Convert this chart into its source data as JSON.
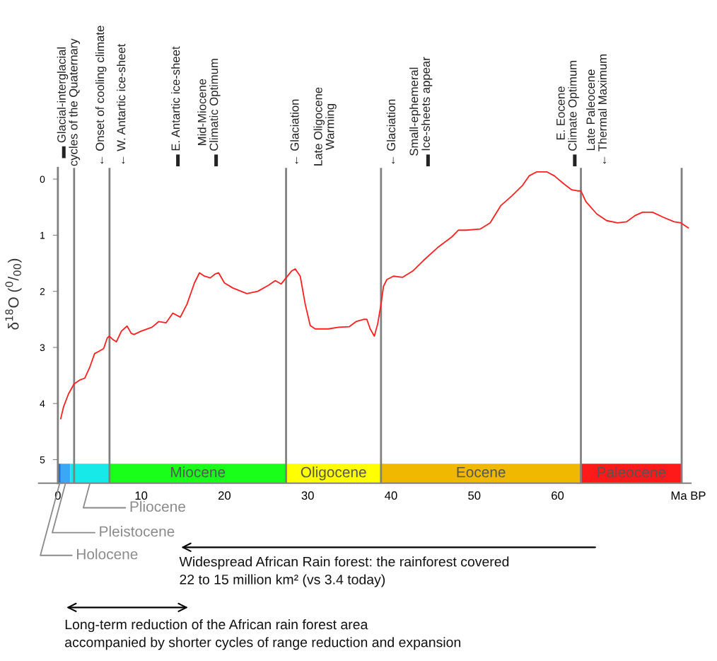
{
  "chart_data": {
    "type": "line",
    "ylabel": "δ$^{18}$O ($^{0}$/$_{00}$)",
    "x": [
      0.34,
      0.68,
      1.27,
      1.95,
      2.63,
      3.22,
      3.81,
      4.41,
      4.92,
      5.5,
      5.93,
      6.19,
      6.61,
      7.03,
      7.63,
      8.31,
      8.81,
      9.15,
      10.0,
      11.3,
      12.1,
      13.0,
      13.8,
      14.7,
      15.5,
      16.4,
      17.0,
      17.6,
      18.3,
      18.9,
      19.3,
      20.0,
      21.0,
      22.7,
      24.0,
      25.3,
      26.1,
      26.8,
      27.4,
      28.05,
      28.5,
      29.1,
      29.7,
      30.3,
      30.9,
      32.5,
      33.7,
      35.0,
      35.8,
      36.7,
      37.1,
      37.5,
      38.0,
      38.4,
      38.8,
      39.1,
      39.5,
      40.3,
      41.4,
      42.6,
      43.9,
      45.6,
      47.3,
      48.1,
      49.0,
      50.7,
      51.9,
      53.2,
      54.5,
      55.8,
      56.6,
      57.5,
      58.7,
      59.6,
      60.8,
      61.7,
      62.4,
      62.8,
      63.4,
      64.7,
      65.9,
      67.2,
      68.3,
      69.3,
      70.2,
      71.4,
      72.7,
      74.0,
      74.8,
      75.7
    ],
    "series": [
      {
        "color": "#ff2020",
        "values": [
          4.27,
          4.06,
          3.83,
          3.65,
          3.58,
          3.55,
          3.36,
          3.11,
          3.07,
          3.02,
          2.83,
          2.8,
          2.86,
          2.9,
          2.71,
          2.62,
          2.75,
          2.77,
          2.71,
          2.64,
          2.54,
          2.56,
          2.39,
          2.46,
          2.23,
          1.85,
          1.67,
          1.73,
          1.76,
          1.69,
          1.67,
          1.85,
          1.94,
          2.04,
          2.0,
          1.89,
          1.81,
          1.87,
          1.76,
          1.64,
          1.6,
          1.73,
          2.23,
          2.61,
          2.67,
          2.67,
          2.64,
          2.63,
          2.54,
          2.5,
          2.5,
          2.67,
          2.8,
          2.58,
          2.23,
          1.91,
          1.79,
          1.73,
          1.75,
          1.64,
          1.45,
          1.22,
          1.03,
          0.91,
          0.91,
          0.89,
          0.78,
          0.47,
          0.3,
          0.11,
          -0.06,
          -0.13,
          -0.13,
          -0.06,
          0.09,
          0.19,
          0.21,
          0.21,
          0.4,
          0.62,
          0.74,
          0.78,
          0.76,
          0.65,
          0.59,
          0.59,
          0.68,
          0.76,
          0.78,
          0.87
        ]
      }
    ],
    "xlim": [
      -2.3,
      76.0
    ],
    "ylim": [
      5.42,
      -0.2
    ],
    "xticks": [
      0,
      10,
      20,
      30,
      40,
      50,
      60,
      {
        "value": 75.7,
        "label": "Ma BP"
      }
    ],
    "yticks": [
      0,
      1,
      2,
      3,
      4,
      5
    ],
    "marker": "none",
    "line_style": "solid",
    "ref_lines": [
      {
        "axis": "x",
        "value": 1.95,
        "color": "#808080"
      },
      {
        "axis": "x",
        "value": 6.2,
        "color": "#808080"
      },
      {
        "axis": "x",
        "value": 27.4,
        "color": "#808080"
      },
      {
        "axis": "x",
        "value": 38.8,
        "color": "#808080"
      },
      {
        "axis": "x",
        "value": 62.8,
        "color": "#808080"
      },
      {
        "axis": "x",
        "value": 74.9,
        "color": "#808080"
      }
    ],
    "bands": [
      {
        "axis": "x",
        "from": 0.1,
        "to": 0.34,
        "label": "Holocene",
        "color": "#1f6fd0"
      },
      {
        "axis": "x",
        "from": 0.34,
        "to": 1.5,
        "label": "Pleistocene",
        "color": "#3aa8f5"
      },
      {
        "axis": "x",
        "from": 1.5,
        "to": 6.2,
        "label": "Pliocene",
        "color": "#17e8e8"
      },
      {
        "axis": "x",
        "from": 6.2,
        "to": 27.4,
        "label": "Miocene",
        "color": "#1aff1a"
      },
      {
        "axis": "x",
        "from": 27.4,
        "to": 38.8,
        "label": "Oligocene",
        "color": "#ffff00"
      },
      {
        "axis": "x",
        "from": 38.8,
        "to": 62.8,
        "label": "Eocene",
        "color": "#f0b800"
      },
      {
        "axis": "x",
        "from": 62.8,
        "to": 74.9,
        "label": "Paleocene",
        "color": "#ff1a1a"
      }
    ],
    "annotations": [
      "▬ Glacial-interglacial\ncycles of the Quaternary",
      "← Onset of cooling climate",
      "← W. Antartic ice-sheet",
      "▬ E. Antartic ice-sheet",
      "Mid-Miocene\n▬ Climatic Optimum",
      "← Glaciation",
      "Late Oligocene\nWarming",
      "← Glaciation",
      "Small-ephemeral\n▬ Ice-sheets appear",
      "E. Eocene\n▬ Climate Optimum",
      "Late Paleocene\n← Thermal Maximum",
      "Widespread African Rain forest: the rainforest covered\n22 to 15 million km² (vs 3.4 today)",
      "Long-term reduction of the African rain forest area\naccompanied by shorter cycles of range reduction and expansion"
    ]
  }
}
